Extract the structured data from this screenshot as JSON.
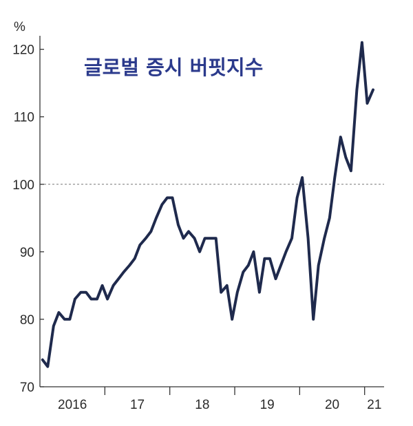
{
  "chart_data": {
    "type": "line",
    "title": "글로벌 증시 버핏지수",
    "y_unit": "%",
    "ylim": [
      70,
      122
    ],
    "yticks": [
      70,
      80,
      90,
      100,
      110,
      120
    ],
    "reference_line": 100,
    "x_labels": [
      "2016",
      "17",
      "18",
      "19",
      "20",
      "21"
    ],
    "xlim": [
      2016.0,
      2021.3
    ],
    "line_color": "#1f2a4d",
    "title_color": "#2b3a8c",
    "series": [
      {
        "x": [
          2016.04,
          2016.12,
          2016.21,
          2016.29,
          2016.38,
          2016.46,
          2016.54,
          2016.63,
          2016.71,
          2016.79,
          2016.88,
          2016.96,
          2017.04,
          2017.13,
          2017.21,
          2017.29,
          2017.38,
          2017.46,
          2017.54,
          2017.63,
          2017.71,
          2017.79,
          2017.88,
          2017.96,
          2018.04,
          2018.13,
          2018.21,
          2018.29,
          2018.38,
          2018.46,
          2018.54,
          2018.63,
          2018.71,
          2018.79,
          2018.88,
          2018.96,
          2019.04,
          2019.13,
          2019.21,
          2019.29,
          2019.38,
          2019.46,
          2019.54,
          2019.63,
          2019.71,
          2019.79,
          2019.88,
          2019.96,
          2020.04,
          2020.13,
          2020.21,
          2020.29,
          2020.38,
          2020.46,
          2020.54,
          2020.63,
          2020.71,
          2020.79,
          2020.88,
          2020.96,
          2021.04,
          2021.13
        ],
        "values": [
          74,
          73,
          79,
          81,
          80,
          80,
          83,
          84,
          84,
          83,
          83,
          85,
          83,
          85,
          86,
          87,
          88,
          89,
          91,
          92,
          93,
          95,
          97,
          98,
          98,
          94,
          92,
          93,
          92,
          90,
          92,
          92,
          92,
          84,
          85,
          80,
          84,
          87,
          88,
          90,
          84,
          89,
          89,
          86,
          88,
          90,
          92,
          98,
          101,
          92,
          80,
          88,
          92,
          95,
          101,
          107,
          104,
          102,
          114,
          121,
          112,
          114
        ]
      }
    ]
  }
}
